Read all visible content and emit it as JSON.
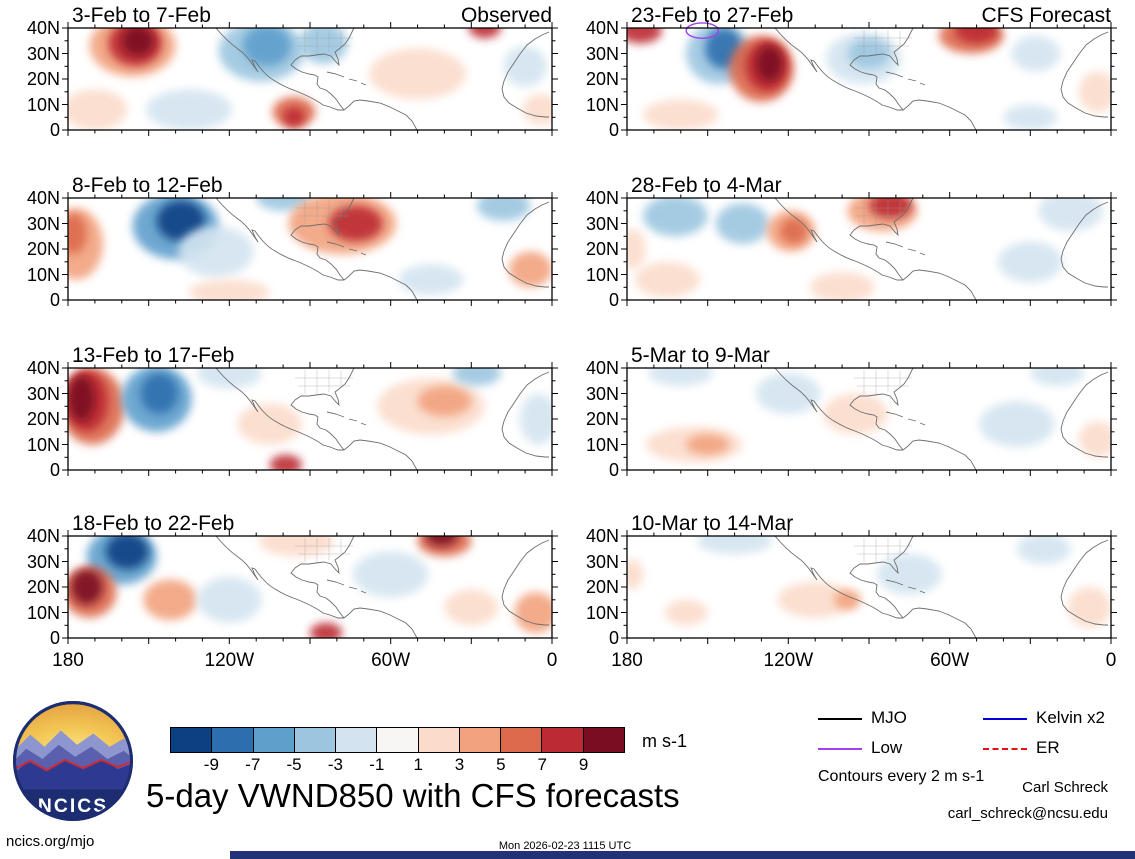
{
  "title": "5-day VWND850 with CFS forecasts",
  "column_headers": {
    "left": "Observed",
    "right": "CFS Forecast"
  },
  "axes": {
    "lat_ticks": [
      "40N",
      "30N",
      "20N",
      "10N",
      "0"
    ],
    "lon_ticks": [
      "180",
      "120W",
      "60W",
      "0"
    ]
  },
  "colorbar": {
    "unit": "m s-1",
    "labels": [
      "-9",
      "-7",
      "-5",
      "-3",
      "-1",
      "1",
      "3",
      "5",
      "7",
      "9"
    ],
    "colors": [
      "#0b4083",
      "#2d6fae",
      "#5f9fcc",
      "#9cc6e0",
      "#d3e4f0",
      "#f8f6f4",
      "#fbdccb",
      "#f2a27e",
      "#dd6a4d",
      "#bc2a33",
      "#7a0d21"
    ]
  },
  "legend": {
    "items": [
      {
        "label": "MJO",
        "color": "#000000",
        "style": "solid"
      },
      {
        "label": "Kelvin x2",
        "color": "#0000dd",
        "style": "solid"
      },
      {
        "label": "Low",
        "color": "#a040f0",
        "style": "solid"
      },
      {
        "label": "ER",
        "color": "#e81111",
        "style": "dashed"
      }
    ],
    "note": "Contours every 2 m s-1"
  },
  "logo_text": "NCICS",
  "meta": {
    "site": "ncics.org/mjo",
    "timestamp": "Mon 2026-02-23 1115 UTC",
    "credit_name": "Carl Schreck",
    "credit_email": "carl_schreck@ncsu.edu",
    "footer_bar_color": "#233178"
  },
  "chart_data": {
    "type": "heatmap",
    "variable": "VWND850 anomaly (850 hPa meridional wind)",
    "units": "m s-1",
    "contour_interval": 2,
    "lon_range": [
      "180",
      "0"
    ],
    "lat_range": [
      "0",
      "40N"
    ],
    "colorbar_levels": [
      -9,
      -7,
      -5,
      -3,
      -1,
      1,
      3,
      5,
      7,
      9
    ],
    "anomaly_format": "[lon_degE(neg=W), lat_degN, rx_deg, ry_deg, value_m_s]",
    "panels": [
      {
        "title": "3-Feb to 7-Feb",
        "column": "Observed",
        "anomalies": [
          [
            -156,
            33,
            16,
            12,
            4
          ],
          [
            -155,
            34,
            10,
            9,
            8
          ],
          [
            -154,
            35,
            6,
            6,
            10
          ],
          [
            -108,
            31,
            16,
            12,
            -4
          ],
          [
            -106,
            33,
            9,
            8,
            -6
          ],
          [
            -85,
            34,
            9,
            8,
            -4
          ],
          [
            -96,
            7,
            8,
            6,
            6
          ],
          [
            -96,
            5,
            4,
            4,
            8
          ],
          [
            -170,
            8,
            12,
            8,
            2
          ],
          [
            -135,
            8,
            16,
            8,
            -2
          ],
          [
            -50,
            22,
            18,
            10,
            2
          ],
          [
            -25,
            40,
            6,
            4,
            8
          ],
          [
            -10,
            25,
            8,
            8,
            -2
          ],
          [
            -4,
            8,
            7,
            6,
            2
          ]
        ]
      },
      {
        "title": "8-Feb to 12-Feb",
        "column": "Observed",
        "anomalies": [
          [
            -177,
            22,
            10,
            14,
            4
          ],
          [
            -178,
            26,
            5,
            8,
            6
          ],
          [
            -140,
            29,
            16,
            13,
            -6
          ],
          [
            -138,
            31,
            9,
            8,
            -10
          ],
          [
            -125,
            19,
            14,
            10,
            -2
          ],
          [
            -100,
            40,
            10,
            5,
            -4
          ],
          [
            -78,
            30,
            20,
            12,
            4
          ],
          [
            -73,
            30,
            10,
            7,
            8
          ],
          [
            -18,
            37,
            10,
            6,
            -4
          ],
          [
            -8,
            12,
            8,
            7,
            4
          ],
          [
            -120,
            3,
            15,
            5,
            2
          ],
          [
            -45,
            8,
            12,
            6,
            -2
          ]
        ]
      },
      {
        "title": "13-Feb to 17-Feb",
        "column": "Observed",
        "anomalies": [
          [
            -171,
            25,
            12,
            15,
            6
          ],
          [
            -173,
            27,
            8,
            12,
            8
          ],
          [
            -175,
            28,
            5,
            9,
            10
          ],
          [
            -147,
            28,
            13,
            13,
            -6
          ],
          [
            -146,
            30,
            7,
            8,
            -8
          ],
          [
            -120,
            38,
            12,
            6,
            -2
          ],
          [
            -45,
            25,
            20,
            11,
            2
          ],
          [
            -40,
            27,
            10,
            6,
            4
          ],
          [
            -28,
            38,
            9,
            5,
            -4
          ],
          [
            -99,
            2,
            6,
            4,
            8
          ],
          [
            -105,
            18,
            12,
            8,
            2
          ],
          [
            -5,
            20,
            7,
            10,
            -2
          ]
        ]
      },
      {
        "title": "18-Feb to 22-Feb",
        "column": "Observed",
        "anomalies": [
          [
            -160,
            32,
            13,
            11,
            -6
          ],
          [
            -158,
            34,
            8,
            7,
            -10
          ],
          [
            -172,
            18,
            10,
            10,
            6
          ],
          [
            -173,
            20,
            6,
            7,
            10
          ],
          [
            -142,
            15,
            10,
            8,
            4
          ],
          [
            -120,
            15,
            12,
            9,
            -2
          ],
          [
            -95,
            38,
            14,
            6,
            2
          ],
          [
            -60,
            25,
            14,
            9,
            -2
          ],
          [
            -40,
            38,
            10,
            6,
            6
          ],
          [
            -41,
            40,
            6,
            4,
            10
          ],
          [
            -84,
            2,
            6,
            4,
            8
          ],
          [
            -6,
            10,
            8,
            8,
            4
          ],
          [
            -30,
            12,
            10,
            7,
            2
          ]
        ]
      },
      {
        "title": "23-Feb to 27-Feb",
        "column": "CFS Forecast",
        "anomalies": [
          [
            -175,
            39,
            8,
            5,
            8
          ],
          [
            -146,
            30,
            12,
            12,
            -4
          ],
          [
            -144,
            32,
            7,
            8,
            -8
          ],
          [
            -130,
            24,
            12,
            13,
            6
          ],
          [
            -128,
            25,
            8,
            10,
            8
          ],
          [
            -127,
            26,
            5,
            7,
            10
          ],
          [
            -92,
            28,
            14,
            10,
            -2
          ],
          [
            -90,
            30,
            8,
            6,
            -4
          ],
          [
            -52,
            37,
            12,
            7,
            6
          ],
          [
            -50,
            39,
            8,
            5,
            8
          ],
          [
            -28,
            30,
            9,
            7,
            -2
          ],
          [
            -160,
            6,
            14,
            6,
            2
          ],
          [
            -5,
            15,
            7,
            8,
            2
          ],
          [
            -30,
            5,
            10,
            5,
            -2
          ]
        ],
        "low_contour": [
          -152,
          39,
          6,
          3
        ]
      },
      {
        "title": "28-Feb to 4-Mar",
        "column": "CFS Forecast",
        "anomalies": [
          [
            -162,
            33,
            12,
            8,
            -4
          ],
          [
            -137,
            30,
            10,
            8,
            -4
          ],
          [
            -119,
            27,
            9,
            8,
            4
          ],
          [
            -118,
            27,
            5,
            5,
            6
          ],
          [
            -85,
            35,
            13,
            8,
            4
          ],
          [
            -82,
            37,
            8,
            5,
            8
          ],
          [
            -15,
            35,
            12,
            8,
            -2
          ],
          [
            -30,
            15,
            12,
            8,
            -2
          ],
          [
            -165,
            8,
            12,
            7,
            2
          ],
          [
            -100,
            5,
            12,
            6,
            2
          ],
          [
            -178,
            20,
            5,
            8,
            2
          ]
        ]
      },
      {
        "title": "5-Mar to 9-Mar",
        "column": "CFS Forecast",
        "anomalies": [
          [
            -155,
            10,
            18,
            7,
            2
          ],
          [
            -150,
            10,
            8,
            4,
            4
          ],
          [
            -160,
            38,
            12,
            5,
            -2
          ],
          [
            -120,
            30,
            12,
            8,
            -2
          ],
          [
            -95,
            22,
            12,
            8,
            2
          ],
          [
            -35,
            18,
            14,
            9,
            -2
          ],
          [
            -20,
            38,
            10,
            5,
            -2
          ],
          [
            -5,
            12,
            7,
            7,
            2
          ]
        ]
      },
      {
        "title": "10-Mar to 14-Mar",
        "column": "CFS Forecast",
        "anomalies": [
          [
            -158,
            10,
            8,
            5,
            2
          ],
          [
            -110,
            15,
            14,
            7,
            2
          ],
          [
            -98,
            15,
            5,
            4,
            4
          ],
          [
            -140,
            38,
            14,
            5,
            -2
          ],
          [
            -75,
            25,
            12,
            8,
            -2
          ],
          [
            -25,
            35,
            10,
            6,
            -2
          ],
          [
            -8,
            12,
            8,
            8,
            2
          ],
          [
            -178,
            25,
            4,
            6,
            2
          ]
        ]
      }
    ]
  }
}
